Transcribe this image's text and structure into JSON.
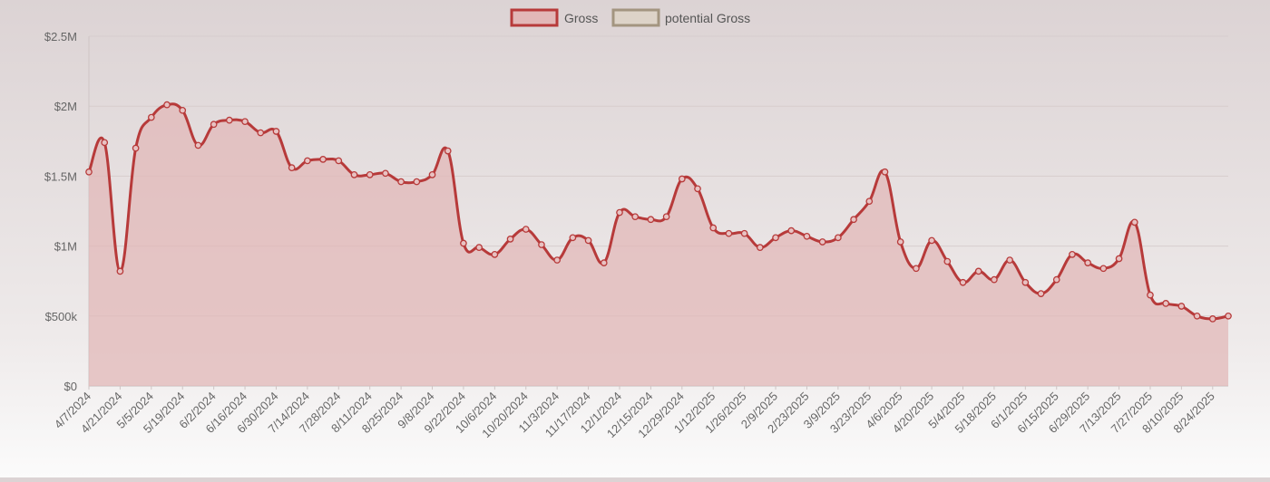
{
  "chart_data": {
    "type": "area",
    "legend": {
      "placement": "top-center",
      "items": [
        {
          "label": "Gross",
          "color": "#b73a3a",
          "fill": "#e2b7b7"
        },
        {
          "label": "potential Gross",
          "color": "#a39580",
          "fill": "#ddd3c8"
        }
      ]
    },
    "y_ticks": [
      "$0",
      "$500k",
      "$1M",
      "$1.5M",
      "$2M",
      "$2.5M"
    ],
    "ylim": [
      0,
      2500000
    ],
    "grid": true,
    "x_tick_labels": [
      "4/7/2024",
      "4/21/2024",
      "5/5/2024",
      "5/19/2024",
      "6/2/2024",
      "6/16/2024",
      "6/30/2024",
      "7/14/2024",
      "7/28/2024",
      "8/11/2024",
      "8/25/2024",
      "9/8/2024",
      "9/22/2024",
      "10/6/2024",
      "10/20/2024",
      "11/3/2024",
      "11/17/2024",
      "12/1/2024",
      "12/15/2024",
      "12/29/2024",
      "1/12/2025",
      "1/26/2025",
      "2/9/2025",
      "2/23/2025",
      "3/9/2025",
      "3/23/2025",
      "4/6/2025",
      "4/20/2025",
      "5/4/2025",
      "5/18/2025",
      "6/1/2025",
      "6/15/2025",
      "6/29/2025",
      "7/13/2025",
      "7/27/2025",
      "8/10/2025",
      "8/24/2025"
    ],
    "series": [
      {
        "name": "Gross",
        "color": "#b73a3a",
        "values": [
          1530000,
          1740000,
          820000,
          1700000,
          1920000,
          2010000,
          1970000,
          1720000,
          1870000,
          1900000,
          1890000,
          1810000,
          1820000,
          1560000,
          1610000,
          1620000,
          1610000,
          1510000,
          1510000,
          1520000,
          1460000,
          1460000,
          1510000,
          1680000,
          1020000,
          990000,
          940000,
          1050000,
          1120000,
          1010000,
          900000,
          1060000,
          1040000,
          880000,
          1240000,
          1210000,
          1190000,
          1210000,
          1480000,
          1410000,
          1130000,
          1090000,
          1090000,
          990000,
          1060000,
          1110000,
          1070000,
          1030000,
          1060000,
          1190000,
          1320000,
          1530000,
          1030000,
          840000,
          1040000,
          890000,
          740000,
          820000,
          760000,
          900000,
          740000,
          660000,
          760000,
          940000,
          880000,
          840000,
          910000,
          1170000,
          650000,
          590000,
          570000,
          500000,
          480000,
          500000
        ]
      }
    ]
  }
}
